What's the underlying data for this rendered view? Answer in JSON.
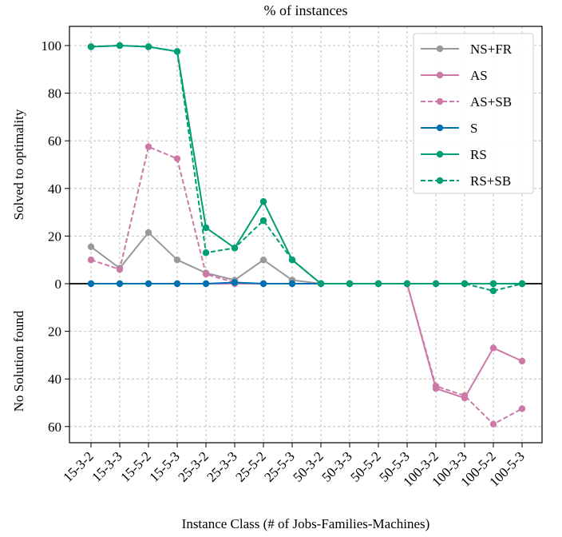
{
  "chart_data": {
    "type": "line",
    "title": "% of instances",
    "xlabel": "Instance Class (# of Jobs-Families-Machines)",
    "ylabel_top": "Solved to optimality",
    "ylabel_bottom": "No Solution found",
    "categories": [
      "15-3-2",
      "15-3-3",
      "15-5-2",
      "15-5-3",
      "25-3-2",
      "25-3-3",
      "25-5-2",
      "25-5-3",
      "50-3-2",
      "50-3-3",
      "50-5-2",
      "50-5-3",
      "100-3-2",
      "100-3-3",
      "100-5-2",
      "100-5-3"
    ],
    "ylim": [
      -60,
      100
    ],
    "yticks": [
      100,
      80,
      60,
      40,
      20,
      0,
      -20,
      -40,
      -60
    ],
    "ytick_labels": [
      "100",
      "80",
      "60",
      "40",
      "20",
      "0",
      "20",
      "40",
      "60"
    ],
    "grid": true,
    "legend_position": "top-right",
    "series": [
      {
        "name": "NS+FR",
        "color": "#999999",
        "dashed": false,
        "values": [
          15.5,
          6.5,
          21.5,
          10,
          4.5,
          1.5,
          10,
          1.5,
          0,
          0,
          0,
          0,
          0,
          0,
          0,
          0
        ]
      },
      {
        "name": "AS",
        "color": "#cc79a7",
        "dashed": false,
        "values": [
          0,
          0,
          0,
          0,
          0,
          0,
          0,
          0,
          0,
          0,
          0,
          0,
          -44,
          -48,
          -27,
          -32.5
        ]
      },
      {
        "name": "AS+SB",
        "color": "#cc79a7",
        "dashed": true,
        "values": [
          10,
          6,
          57.5,
          52.5,
          4,
          0.5,
          0,
          0,
          0,
          0,
          0,
          0,
          -43,
          -47,
          -59,
          -52.5
        ]
      },
      {
        "name": "S",
        "color": "#0072b2",
        "dashed": false,
        "values": [
          0,
          0,
          0,
          0,
          0,
          0.5,
          0,
          0,
          0,
          0,
          0,
          0,
          0,
          0,
          0,
          0
        ]
      },
      {
        "name": "RS",
        "color": "#009e73",
        "dashed": false,
        "values": [
          99.5,
          100,
          99.5,
          97.5,
          23.5,
          15,
          34.5,
          10,
          0,
          0,
          0,
          0,
          0,
          0,
          0,
          0
        ]
      },
      {
        "name": "RS+SB",
        "color": "#009e73",
        "dashed": true,
        "values": [
          99.5,
          100,
          99.5,
          97.5,
          13,
          15,
          26.5,
          10,
          0,
          0,
          0,
          0,
          0,
          0,
          -3,
          0
        ]
      }
    ]
  }
}
